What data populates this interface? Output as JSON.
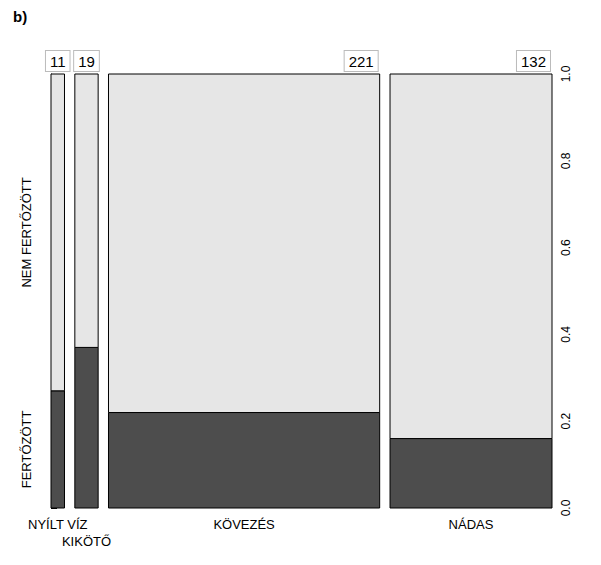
{
  "chart_data": {
    "type": "mosaic",
    "title": "b)",
    "categories": [
      "NYÍLT VÍZ",
      "KIKÖTŐ",
      "KÖVEZÉS",
      "NÁDAS"
    ],
    "counts": [
      11,
      19,
      221,
      132
    ],
    "stacked": true,
    "series": [
      {
        "name": "FERTŐZÖTT",
        "color": "#4d4d4d",
        "values": [
          0.27,
          0.37,
          0.22,
          0.16
        ]
      },
      {
        "name": "NEM FERTŐZÖTT",
        "color": "#e6e6e6",
        "values": [
          0.73,
          0.63,
          0.78,
          0.84
        ]
      }
    ],
    "ylim": [
      0,
      1
    ],
    "yticks": [
      {
        "value": 0,
        "label": "0.0"
      },
      0.2,
      0.4,
      0.6,
      0.8,
      {
        "value": 1,
        "label": "1.0"
      }
    ],
    "grid": false
  }
}
